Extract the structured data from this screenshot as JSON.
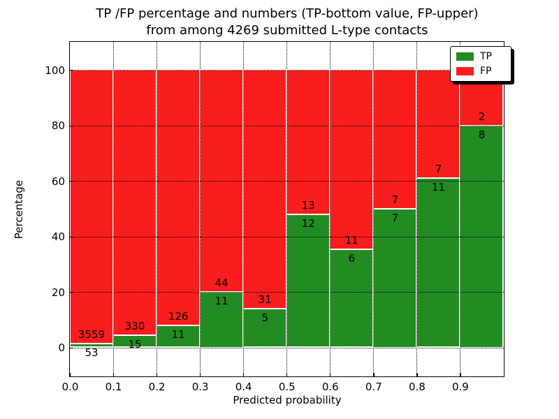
{
  "title": {
    "line1": "TP /FP percentage and numbers (TP-bottom value, FP-upper)",
    "line2": "from among 4269 submitted L-type contacts"
  },
  "axes": {
    "x_label": "Predicted probability",
    "y_label": "Percentage",
    "x_tick_labels": [
      "0.0",
      "0.1",
      "0.2",
      "0.3",
      "0.4",
      "0.5",
      "0.6",
      "0.7",
      "0.8",
      "0.9"
    ],
    "y_tick_values": [
      0,
      20,
      40,
      60,
      80,
      100
    ],
    "y_tick_labels": [
      "0",
      "20",
      "40",
      "60",
      "80",
      "100"
    ],
    "x_range": [
      0.0,
      1.0
    ],
    "grid": "dotted"
  },
  "legend": {
    "position": "upper right",
    "items": [
      {
        "label": "TP",
        "color": "#228b22"
      },
      {
        "label": "FP",
        "color": "#fa1d1d"
      }
    ]
  },
  "colors": {
    "tp": "#228b22",
    "fp": "#fa1d1d",
    "bar_edge": "#ffffff",
    "text": "#000000"
  },
  "chart_data": {
    "type": "bar",
    "stacked": true,
    "total_contacts": 4269,
    "title": "TP /FP percentage and numbers (TP-bottom value, FP-upper) from among 4269 submitted L-type contacts",
    "xlabel": "Predicted probability",
    "ylabel": "Percentage",
    "ylim_shown": [
      0,
      100
    ],
    "bin_width": 0.1,
    "bins": [
      {
        "x_start": 0.0,
        "x_end": 0.1,
        "tp_count": 53,
        "fp_count": 3559,
        "tp_pct": 1.47,
        "fp_pct": 98.53
      },
      {
        "x_start": 0.1,
        "x_end": 0.2,
        "tp_count": 15,
        "fp_count": 330,
        "tp_pct": 4.35,
        "fp_pct": 95.65
      },
      {
        "x_start": 0.2,
        "x_end": 0.3,
        "tp_count": 11,
        "fp_count": 126,
        "tp_pct": 8.03,
        "fp_pct": 91.97
      },
      {
        "x_start": 0.3,
        "x_end": 0.4,
        "tp_count": 11,
        "fp_count": 44,
        "tp_pct": 20.0,
        "fp_pct": 80.0
      },
      {
        "x_start": 0.4,
        "x_end": 0.5,
        "tp_count": 5,
        "fp_count": 31,
        "tp_pct": 13.89,
        "fp_pct": 86.11
      },
      {
        "x_start": 0.5,
        "x_end": 0.6,
        "tp_count": 12,
        "fp_count": 13,
        "tp_pct": 48.0,
        "fp_pct": 52.0
      },
      {
        "x_start": 0.6,
        "x_end": 0.7,
        "tp_count": 6,
        "fp_count": 11,
        "tp_pct": 35.29,
        "fp_pct": 64.71
      },
      {
        "x_start": 0.7,
        "x_end": 0.8,
        "tp_count": 7,
        "fp_count": 7,
        "tp_pct": 50.0,
        "fp_pct": 50.0
      },
      {
        "x_start": 0.8,
        "x_end": 0.9,
        "tp_count": 11,
        "fp_count": 7,
        "tp_pct": 61.11,
        "fp_pct": 38.89
      },
      {
        "x_start": 0.9,
        "x_end": 1.0,
        "tp_count": 8,
        "fp_count": 2,
        "tp_pct": 80.0,
        "fp_pct": 20.0
      }
    ]
  }
}
